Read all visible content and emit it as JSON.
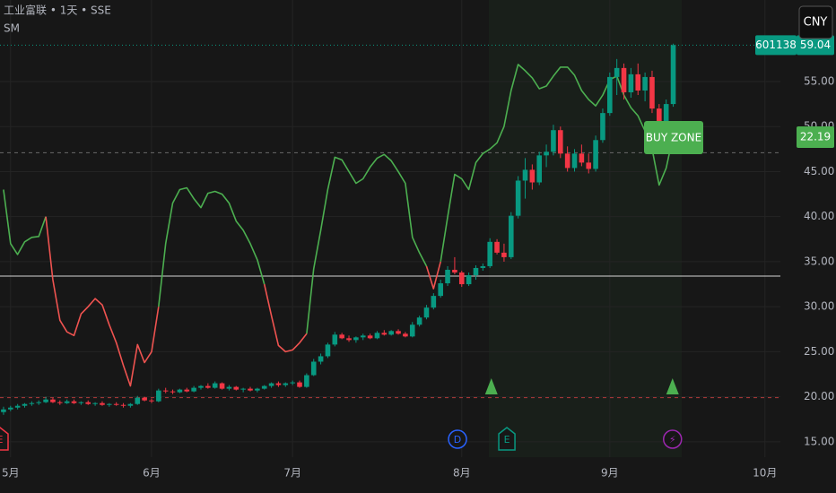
{
  "chart_data": {
    "type": "candlestick",
    "title": "工业富联 • 1天 • SSE",
    "indicator": "SM",
    "currency": "CNY",
    "symbol_label": "601138",
    "last_price": 59.04,
    "indicator_value": 22.19,
    "zone_label": "BUY ZONE",
    "up_color": "#089981",
    "down_color": "#f23645",
    "grid": true,
    "xlim": [
      -0.5,
      110.2
    ],
    "ylim": [
      13.3,
      64.05
    ],
    "xticks": [
      {
        "value": 1,
        "label": "5月"
      },
      {
        "value": 21,
        "label": "6月"
      },
      {
        "value": 41,
        "label": "7月"
      },
      {
        "value": 65,
        "label": "8月"
      },
      {
        "value": 86,
        "label": "9月"
      },
      {
        "value": 108,
        "label": "10月"
      }
    ],
    "yticks": [
      {
        "value": 15,
        "label": "15.00"
      },
      {
        "value": 20,
        "label": "20.00"
      },
      {
        "value": 25,
        "label": "25.00"
      },
      {
        "value": 30,
        "label": "30.00"
      },
      {
        "value": 35,
        "label": "35.00"
      },
      {
        "value": 40,
        "label": "40.00"
      },
      {
        "value": 45,
        "label": "45.00"
      },
      {
        "value": 50,
        "label": "50.00"
      },
      {
        "value": 55,
        "label": "55.00"
      }
    ],
    "ohlc": [
      [
        18.3,
        18.9,
        18.0,
        18.6
      ],
      [
        18.6,
        19.0,
        18.4,
        18.8
      ],
      [
        18.8,
        19.2,
        18.6,
        19.0
      ],
      [
        19.0,
        19.3,
        18.8,
        19.2
      ],
      [
        19.2,
        19.5,
        19.0,
        19.3
      ],
      [
        19.3,
        19.6,
        19.1,
        19.4
      ],
      [
        19.4,
        20.0,
        19.3,
        19.7
      ],
      [
        19.7,
        19.9,
        19.3,
        19.4
      ],
      [
        19.4,
        19.6,
        19.1,
        19.3
      ],
      [
        19.3,
        19.7,
        19.2,
        19.5
      ],
      [
        19.5,
        19.7,
        19.2,
        19.3
      ],
      [
        19.3,
        19.5,
        19.1,
        19.4
      ],
      [
        19.4,
        19.6,
        19.1,
        19.2
      ],
      [
        19.2,
        19.4,
        19.0,
        19.3
      ],
      [
        19.3,
        19.5,
        19.0,
        19.1
      ],
      [
        19.1,
        19.3,
        18.9,
        19.2
      ],
      [
        19.2,
        19.4,
        19.0,
        19.1
      ],
      [
        19.1,
        19.3,
        18.8,
        19.0
      ],
      [
        19.0,
        19.3,
        18.8,
        19.2
      ],
      [
        19.2,
        20.1,
        19.1,
        19.9
      ],
      [
        19.9,
        20.0,
        19.5,
        19.6
      ],
      [
        19.6,
        19.8,
        19.3,
        19.5
      ],
      [
        19.5,
        20.9,
        19.4,
        20.7
      ],
      [
        20.7,
        21.0,
        20.4,
        20.6
      ],
      [
        20.6,
        20.8,
        20.3,
        20.5
      ],
      [
        20.5,
        20.9,
        20.4,
        20.8
      ],
      [
        20.8,
        21.0,
        20.5,
        20.6
      ],
      [
        20.6,
        21.2,
        20.5,
        21.0
      ],
      [
        21.0,
        21.3,
        20.8,
        21.2
      ],
      [
        21.2,
        21.5,
        20.9,
        21.0
      ],
      [
        21.0,
        21.7,
        20.9,
        21.5
      ],
      [
        21.5,
        21.6,
        20.8,
        20.9
      ],
      [
        20.9,
        21.3,
        20.7,
        21.1
      ],
      [
        21.1,
        21.2,
        20.7,
        20.8
      ],
      [
        20.8,
        21.0,
        20.5,
        20.9
      ],
      [
        20.9,
        21.1,
        20.6,
        20.7
      ],
      [
        20.7,
        21.0,
        20.5,
        20.9
      ],
      [
        20.9,
        21.3,
        20.8,
        21.2
      ],
      [
        21.2,
        21.6,
        21.0,
        21.5
      ],
      [
        21.5,
        21.7,
        21.1,
        21.3
      ],
      [
        21.3,
        21.6,
        21.1,
        21.5
      ],
      [
        21.5,
        21.8,
        21.3,
        21.6
      ],
      [
        21.6,
        21.8,
        21.0,
        21.1
      ],
      [
        21.1,
        22.6,
        21.0,
        22.4
      ],
      [
        22.4,
        24.2,
        22.3,
        23.9
      ],
      [
        23.9,
        24.8,
        23.6,
        24.5
      ],
      [
        24.5,
        26.0,
        24.3,
        25.8
      ],
      [
        25.8,
        27.2,
        25.6,
        26.9
      ],
      [
        26.9,
        27.1,
        26.4,
        26.5
      ],
      [
        26.5,
        26.8,
        26.1,
        26.3
      ],
      [
        26.3,
        26.7,
        26.0,
        26.6
      ],
      [
        26.6,
        27.0,
        26.3,
        26.8
      ],
      [
        26.8,
        27.0,
        26.4,
        26.5
      ],
      [
        26.5,
        27.3,
        26.4,
        27.1
      ],
      [
        27.1,
        27.4,
        26.8,
        26.9
      ],
      [
        26.9,
        27.4,
        26.8,
        27.3
      ],
      [
        27.3,
        27.5,
        26.9,
        27.0
      ],
      [
        27.0,
        27.2,
        26.6,
        26.7
      ],
      [
        26.7,
        28.3,
        26.6,
        28.0
      ],
      [
        28.0,
        29.0,
        27.8,
        28.8
      ],
      [
        28.8,
        30.2,
        28.6,
        29.9
      ],
      [
        29.9,
        31.5,
        29.7,
        31.2
      ],
      [
        31.2,
        33.0,
        31.0,
        32.6
      ],
      [
        32.6,
        34.5,
        32.3,
        34.1
      ],
      [
        34.1,
        35.5,
        33.6,
        33.8
      ],
      [
        33.8,
        34.0,
        32.2,
        32.5
      ],
      [
        32.5,
        33.8,
        32.3,
        33.5
      ],
      [
        33.5,
        34.6,
        33.0,
        34.3
      ],
      [
        34.3,
        34.8,
        34.0,
        34.5
      ],
      [
        34.5,
        37.6,
        34.3,
        37.2
      ],
      [
        37.2,
        37.5,
        35.8,
        36.0
      ],
      [
        36.0,
        37.0,
        35.0,
        35.5
      ],
      [
        35.5,
        40.5,
        35.3,
        40.1
      ],
      [
        40.1,
        44.5,
        39.8,
        44.0
      ],
      [
        44.0,
        46.5,
        42.0,
        45.2
      ],
      [
        45.2,
        45.8,
        43.0,
        43.8
      ],
      [
        43.8,
        47.2,
        43.5,
        46.8
      ],
      [
        46.8,
        48.0,
        45.5,
        47.2
      ],
      [
        47.2,
        50.2,
        46.8,
        49.6
      ],
      [
        49.6,
        50.0,
        46.5,
        47.0
      ],
      [
        47.0,
        47.8,
        45.0,
        45.4
      ],
      [
        45.4,
        47.5,
        45.0,
        47.0
      ],
      [
        47.0,
        48.0,
        45.6,
        46.0
      ],
      [
        46.0,
        47.0,
        44.8,
        45.3
      ],
      [
        45.3,
        49.0,
        45.0,
        48.5
      ],
      [
        48.5,
        52.0,
        48.2,
        51.5
      ],
      [
        51.5,
        56.0,
        51.2,
        55.5
      ],
      [
        55.5,
        57.5,
        53.5,
        56.5
      ],
      [
        56.5,
        57.0,
        53.0,
        53.8
      ],
      [
        53.8,
        56.5,
        53.2,
        55.8
      ],
      [
        55.8,
        57.0,
        53.5,
        54.0
      ],
      [
        54.0,
        56.0,
        52.8,
        55.5
      ],
      [
        55.5,
        56.2,
        51.5,
        52.0
      ],
      [
        52.0,
        52.5,
        49.0,
        49.6
      ],
      [
        49.6,
        53.0,
        49.2,
        52.5
      ],
      [
        52.5,
        59.2,
        52.2,
        59.04
      ]
    ],
    "series": [
      {
        "color": "#4caf50",
        "values": [
          43,
          37,
          35.8,
          37.2,
          37.7,
          37.8,
          40.0,
          null,
          null,
          null,
          null,
          null,
          null,
          null,
          null,
          null,
          null,
          null,
          null,
          null,
          null,
          null,
          30,
          37,
          41.5,
          43,
          43.2,
          42,
          41,
          42.6,
          42.8,
          42.5,
          41.5,
          39.5,
          38.5,
          37,
          35.2,
          32.5,
          null,
          null,
          null,
          null,
          null,
          27,
          34.2,
          38.5,
          43,
          46.6,
          46.3,
          45,
          43.7,
          44.2,
          45.5,
          46.5,
          46.9,
          46.2,
          45,
          43.7,
          37.7,
          36,
          34.5,
          null,
          35,
          40,
          44.7,
          44.2,
          43,
          46,
          47,
          47.5,
          48.2,
          50,
          54,
          56.9,
          56.2,
          55.4,
          54.2,
          54.5,
          55.6,
          56.6,
          56.6,
          55.7,
          54,
          53,
          52.3,
          53.5,
          55.2,
          55.6,
          53.5,
          52.1,
          51.2,
          49.5,
          47.5,
          43.5,
          45.4,
          49
        ]
      },
      {
        "color": "#ef5350",
        "values": [
          null,
          null,
          null,
          null,
          null,
          null,
          40.0,
          33,
          28.5,
          27.2,
          26.8,
          29.2,
          30.0,
          30.9,
          30.2,
          28,
          26,
          23.5,
          21.2,
          25.8,
          23.8,
          25,
          30,
          null,
          null,
          null,
          null,
          null,
          null,
          null,
          null,
          null,
          null,
          null,
          null,
          null,
          null,
          32.5,
          29,
          25.7,
          25,
          25.2,
          26,
          27,
          null,
          null,
          null,
          null,
          null,
          null,
          null,
          null,
          null,
          null,
          null,
          null,
          null,
          null,
          null,
          null,
          34.5,
          32,
          35,
          null,
          null,
          null,
          null,
          null,
          null,
          null,
          null,
          null,
          null,
          null,
          null,
          null,
          null,
          null,
          null,
          null,
          null,
          null,
          null,
          null,
          null,
          null,
          null,
          null,
          null,
          null,
          null,
          null,
          null,
          null
        ]
      }
    ],
    "hlines": [
      {
        "value": 59.04,
        "color": "#089981",
        "dash": "1 3"
      },
      {
        "value": 47.1,
        "color": "#6a6a6a",
        "dash": "4 4"
      },
      {
        "value": 33.4,
        "color": "#d6d6d6",
        "dash": "none"
      },
      {
        "value": 19.9,
        "color": "#b23a3a",
        "dash": "4 4"
      }
    ],
    "buy_signals": [
      69.2,
      94.9
    ],
    "signal_color": "#4caf50",
    "events": [
      {
        "label": "E",
        "x": -0.5,
        "color": "#f23645",
        "shape": "flag"
      },
      {
        "label": "D",
        "x": 64.4,
        "color": "#2962ff",
        "shape": "circle"
      },
      {
        "label": "E",
        "x": 71.4,
        "color": "#089981",
        "shape": "flag"
      },
      {
        "label": "⚡",
        "x": 94.9,
        "color": "#9c27b0",
        "shape": "circle"
      }
    ]
  }
}
